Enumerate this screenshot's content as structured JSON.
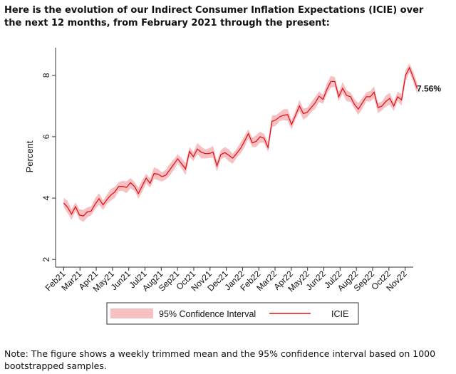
{
  "heading": "Here is the evolution of our Indirect Consumer Inflation Expectations (ICIE) over the next 12 months, from February 2021 through the present:",
  "note": "Note: The figure shows a weekly trimmed mean and the 95% confidence interval based on 1000 bootstrapped samples.",
  "colors": {
    "ci_fill": "#f7c1c3",
    "line": "#e0141c",
    "axis": "#333333",
    "text": "#111111"
  },
  "chart_data": {
    "type": "line",
    "ylabel": "Percent",
    "xlabel": "",
    "ylim": [
      1.75,
      8.9
    ],
    "yticks": [
      2,
      4,
      6,
      8
    ],
    "ytick_labels": [
      "2",
      "4",
      "6",
      "8"
    ],
    "xticks": [
      "Feb21",
      "Mar21",
      "Apr21",
      "May21",
      "Jun21",
      "Jul21",
      "Aug21",
      "Sep21",
      "Oct21",
      "Nov21",
      "Dec21",
      "Jan22",
      "Feb22",
      "Mar22",
      "Apr22",
      "May22",
      "Jun22",
      "Jul22",
      "Aug22",
      "Sep22",
      "Oct22",
      "Nov22"
    ],
    "x_start": 0.5,
    "x_end": 22.25,
    "last_value_label": "7.56%",
    "legend": {
      "placement": "bottom",
      "ci_label": "95% Confidence Interval",
      "line_label": "ICIE"
    },
    "ci_half_width": 0.17,
    "series": [
      {
        "name": "ICIE",
        "values": [
          3.84,
          3.7,
          3.48,
          3.72,
          3.45,
          3.42,
          3.55,
          3.58,
          3.8,
          3.98,
          3.78,
          3.95,
          4.1,
          4.2,
          4.38,
          4.38,
          4.35,
          4.5,
          4.38,
          4.15,
          4.4,
          4.65,
          4.48,
          4.8,
          4.78,
          4.7,
          4.75,
          4.92,
          5.1,
          5.28,
          5.12,
          4.95,
          5.52,
          5.35,
          5.6,
          5.5,
          5.45,
          5.45,
          5.5,
          5.05,
          5.42,
          5.48,
          5.4,
          5.3,
          5.45,
          5.62,
          5.85,
          6.1,
          5.8,
          5.85,
          6.0,
          5.95,
          5.65,
          6.5,
          6.55,
          6.65,
          6.7,
          6.72,
          6.4,
          6.7,
          7.0,
          6.75,
          6.8,
          6.95,
          7.1,
          7.32,
          7.22,
          7.55,
          7.8,
          7.8,
          7.3,
          7.58,
          7.35,
          7.3,
          7.05,
          6.9,
          7.1,
          7.3,
          7.3,
          7.45,
          6.95,
          7.0,
          7.15,
          7.25,
          7.0,
          7.3,
          7.2,
          8.0,
          8.25,
          7.92,
          7.56
        ]
      }
    ]
  }
}
